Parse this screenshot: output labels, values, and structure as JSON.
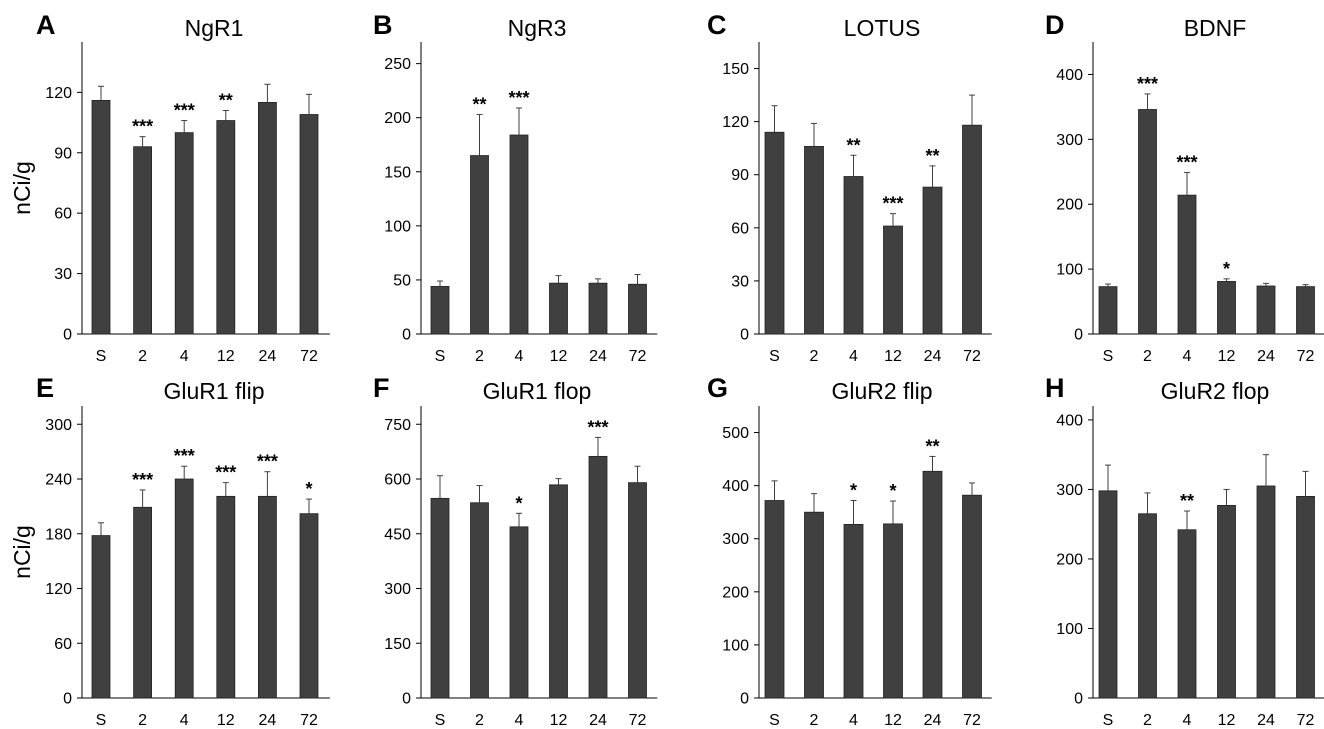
{
  "chart_data": [
    {
      "type": "bar",
      "panel": "A",
      "title": "NgR1",
      "ylabel": "nCi/g",
      "categories": [
        "S",
        "2",
        "4",
        "12",
        "24",
        "72"
      ],
      "values": [
        116,
        93,
        100,
        106,
        115,
        109
      ],
      "errors": [
        7,
        5,
        6,
        5,
        9,
        10
      ],
      "significance": [
        "",
        "***",
        "***",
        "**",
        "",
        ""
      ],
      "ylim": [
        0,
        145
      ],
      "yticks": [
        0,
        30,
        60,
        90,
        120
      ],
      "bar_color": "#404040"
    },
    {
      "type": "bar",
      "panel": "B",
      "title": "NgR3",
      "ylabel": "",
      "categories": [
        "S",
        "2",
        "4",
        "12",
        "24",
        "72"
      ],
      "values": [
        44,
        165,
        184,
        47,
        47,
        46
      ],
      "errors": [
        5,
        38,
        25,
        7,
        4,
        9
      ],
      "significance": [
        "",
        "**",
        "***",
        "",
        "",
        ""
      ],
      "ylim": [
        0,
        270
      ],
      "yticks": [
        0,
        50,
        100,
        150,
        200,
        250
      ],
      "bar_color": "#404040"
    },
    {
      "type": "bar",
      "panel": "C",
      "title": "LOTUS",
      "ylabel": "",
      "categories": [
        "S",
        "2",
        "4",
        "12",
        "24",
        "72"
      ],
      "values": [
        114,
        106,
        89,
        61,
        83,
        118
      ],
      "errors": [
        15,
        13,
        12,
        7,
        12,
        17
      ],
      "significance": [
        "",
        "",
        "**",
        "***",
        "**",
        ""
      ],
      "ylim": [
        0,
        165
      ],
      "yticks": [
        0,
        30,
        60,
        90,
        120,
        150
      ],
      "bar_color": "#404040"
    },
    {
      "type": "bar",
      "panel": "D",
      "title": "BDNF",
      "ylabel": "",
      "categories": [
        "S",
        "2",
        "4",
        "12",
        "24",
        "72"
      ],
      "values": [
        73,
        346,
        214,
        81,
        74,
        73
      ],
      "errors": [
        4,
        24,
        35,
        4,
        4,
        3
      ],
      "significance": [
        "",
        "***",
        "***",
        "*",
        "",
        ""
      ],
      "ylim": [
        0,
        450
      ],
      "yticks": [
        0,
        100,
        200,
        300,
        400
      ],
      "bar_color": "#404040"
    },
    {
      "type": "bar",
      "panel": "E",
      "title": "GluR1 flip",
      "ylabel": "nCi/g",
      "categories": [
        "S",
        "2",
        "4",
        "12",
        "24",
        "72"
      ],
      "values": [
        178,
        209,
        240,
        221,
        221,
        202
      ],
      "errors": [
        14,
        19,
        14,
        15,
        27,
        16
      ],
      "significance": [
        "",
        "***",
        "***",
        "***",
        "***",
        "*"
      ],
      "ylim": [
        0,
        320
      ],
      "yticks": [
        0,
        60,
        120,
        180,
        240,
        300
      ],
      "bar_color": "#404040"
    },
    {
      "type": "bar",
      "panel": "F",
      "title": "GluR1 flop",
      "ylabel": "",
      "categories": [
        "S",
        "2",
        "4",
        "12",
        "24",
        "72"
      ],
      "values": [
        547,
        535,
        469,
        584,
        662,
        590
      ],
      "errors": [
        62,
        47,
        37,
        17,
        52,
        45
      ],
      "significance": [
        "",
        "",
        "*",
        "",
        "***",
        ""
      ],
      "ylim": [
        0,
        800
      ],
      "yticks": [
        0,
        150,
        300,
        450,
        600,
        750
      ],
      "bar_color": "#404040"
    },
    {
      "type": "bar",
      "panel": "G",
      "title": "GluR2 flip",
      "ylabel": "",
      "categories": [
        "S",
        "2",
        "4",
        "12",
        "24",
        "72"
      ],
      "values": [
        372,
        350,
        327,
        328,
        427,
        382
      ],
      "errors": [
        37,
        35,
        45,
        43,
        28,
        23
      ],
      "significance": [
        "",
        "",
        "*",
        "*",
        "**",
        ""
      ],
      "ylim": [
        0,
        550
      ],
      "yticks": [
        0,
        100,
        200,
        300,
        400,
        500
      ],
      "bar_color": "#404040"
    },
    {
      "type": "bar",
      "panel": "H",
      "title": "GluR2 flop",
      "ylabel": "",
      "categories": [
        "S",
        "2",
        "4",
        "12",
        "24",
        "72"
      ],
      "values": [
        298,
        265,
        242,
        277,
        305,
        290
      ],
      "errors": [
        37,
        30,
        27,
        23,
        45,
        36
      ],
      "significance": [
        "",
        "",
        "**",
        "",
        "",
        ""
      ],
      "ylim": [
        0,
        420
      ],
      "yticks": [
        0,
        100,
        200,
        300,
        400
      ],
      "bar_color": "#404040"
    }
  ]
}
